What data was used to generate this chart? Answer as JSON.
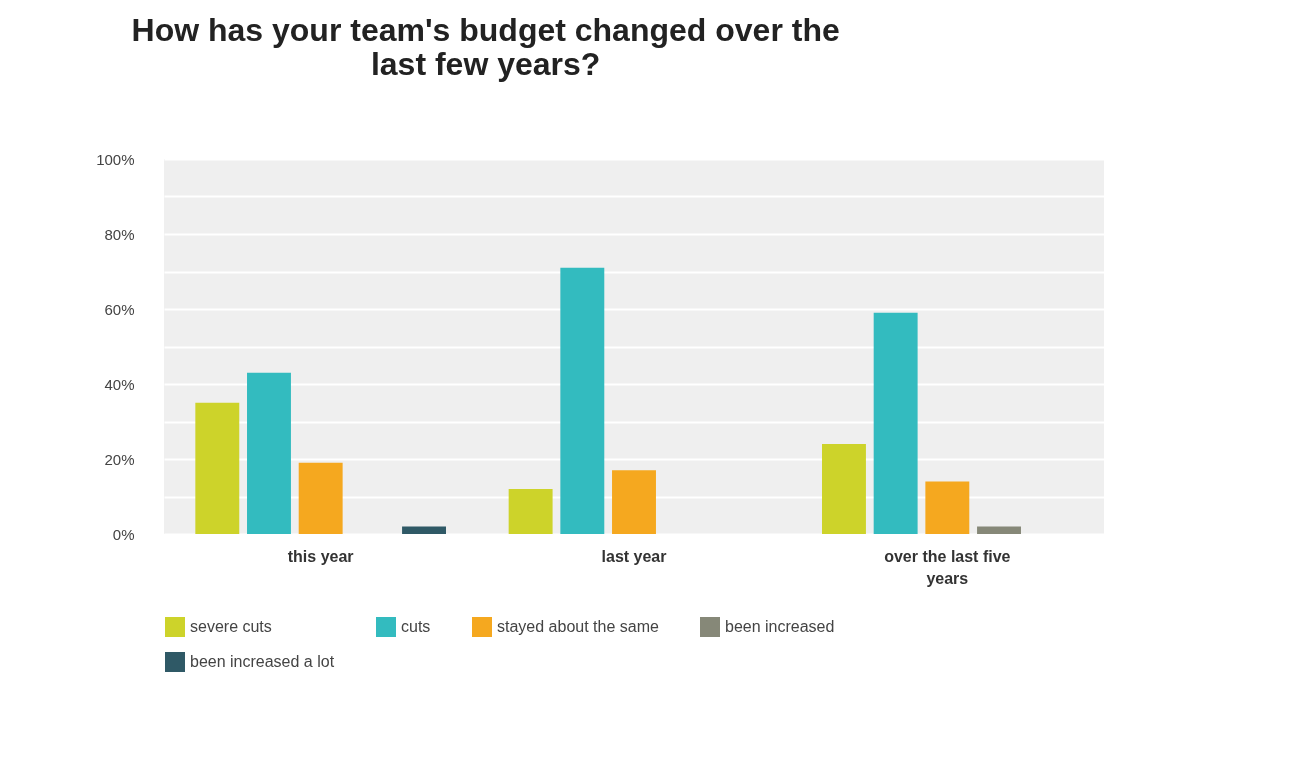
{
  "chart_data": {
    "type": "bar",
    "title": "How has your team's budget changed over the last few years?",
    "categories": [
      "this year",
      "last year",
      "over the last five years"
    ],
    "series": [
      {
        "name": "severe cuts",
        "color": "#cdd32a",
        "values": [
          35,
          12,
          24
        ]
      },
      {
        "name": "cuts",
        "color": "#33bbbf",
        "values": [
          43,
          71,
          59
        ]
      },
      {
        "name": "stayed about the same",
        "color": "#f5a81f",
        "values": [
          19,
          17,
          14
        ]
      },
      {
        "name": "been increased",
        "color": "#868878",
        "values": [
          0,
          0,
          2
        ]
      },
      {
        "name": "been increased a lot",
        "color": "#2f5966",
        "values": [
          2,
          0,
          0
        ]
      }
    ],
    "ylim": [
      0,
      100
    ],
    "yticks": [
      {
        "value": 0,
        "label": "0%"
      },
      {
        "value": 10,
        "label": null
      },
      {
        "value": 20,
        "label": "20%"
      },
      {
        "value": 30,
        "label": null
      },
      {
        "value": 40,
        "label": "40%"
      },
      {
        "value": 50,
        "label": null
      },
      {
        "value": 60,
        "label": "60%"
      },
      {
        "value": 70,
        "label": null
      },
      {
        "value": 80,
        "label": "80%"
      },
      {
        "value": 90,
        "label": null
      },
      {
        "value": 100,
        "label": "100%"
      }
    ],
    "grid": "y",
    "legend": "bottom"
  }
}
